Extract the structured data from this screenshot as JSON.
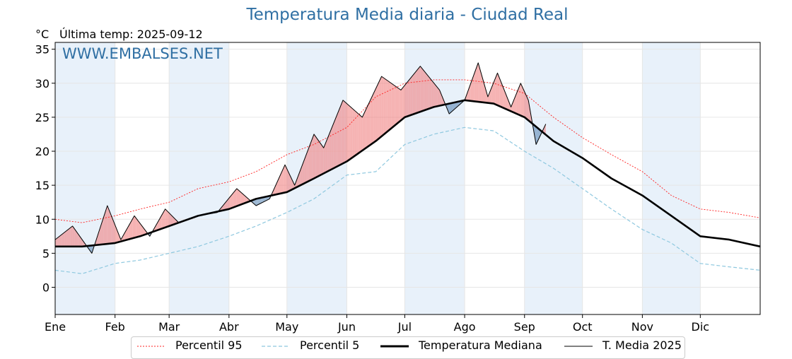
{
  "title": "Temperatura Media diaria - Ciudad Real",
  "unit_label": "°C",
  "last_temp_label": "Última temp: 2025-09-12",
  "watermark": "WWW.EMBALSES.NET",
  "colors": {
    "p95": "#ff2020",
    "p5": "#8ec8df",
    "median": "#000000",
    "current": "#000000",
    "above_fill": "#f08080",
    "below_fill": "#5b88b5",
    "month_shade": "#e8f1fa",
    "title": "#2f6fa3"
  },
  "legend": [
    {
      "key": "p95",
      "label": "Percentil 95"
    },
    {
      "key": "p5",
      "label": "Percentil 5"
    },
    {
      "key": "median",
      "label": "Temperatura Mediana"
    },
    {
      "key": "current",
      "label": "T. Media 2025"
    }
  ],
  "chart_data": {
    "type": "line",
    "title": "Temperatura Media diaria - Ciudad Real",
    "ylabel": "°C",
    "ylim": [
      -4,
      36
    ],
    "yticks": [
      0,
      5,
      10,
      15,
      20,
      25,
      30,
      35
    ],
    "xlim_day": [
      1,
      366
    ],
    "month_ticks": [
      {
        "label": "Ene",
        "day": 1
      },
      {
        "label": "Feb",
        "day": 32
      },
      {
        "label": "Mar",
        "day": 60
      },
      {
        "label": "Abr",
        "day": 91
      },
      {
        "label": "May",
        "day": 121
      },
      {
        "label": "Jun",
        "day": 152
      },
      {
        "label": "Jul",
        "day": 182
      },
      {
        "label": "Ago",
        "day": 213
      },
      {
        "label": "Sep",
        "day": 244
      },
      {
        "label": "Oct",
        "day": 274
      },
      {
        "label": "Nov",
        "day": 305
      },
      {
        "label": "Dic",
        "day": 335
      }
    ],
    "grid": true,
    "legend_position": "bottom",
    "series": [
      {
        "name": "Percentil 95",
        "style": "dotted-red",
        "days": [
          1,
          15,
          32,
          45,
          60,
          75,
          91,
          105,
          121,
          135,
          152,
          167,
          182,
          197,
          213,
          228,
          244,
          259,
          274,
          289,
          305,
          320,
          335,
          350,
          366
        ],
        "values": [
          10.0,
          9.5,
          10.5,
          11.5,
          12.5,
          14.5,
          15.5,
          17.0,
          19.5,
          21.0,
          23.5,
          28.0,
          30.0,
          30.5,
          30.5,
          30.0,
          28.5,
          25.0,
          22.0,
          19.5,
          17.0,
          13.5,
          11.5,
          11.0,
          10.2
        ]
      },
      {
        "name": "Percentil 5",
        "style": "dashed-lightblue",
        "days": [
          1,
          15,
          32,
          45,
          60,
          75,
          91,
          105,
          121,
          135,
          152,
          167,
          182,
          197,
          213,
          228,
          244,
          259,
          274,
          289,
          305,
          320,
          335,
          350,
          366
        ],
        "values": [
          2.5,
          2.0,
          3.5,
          4.0,
          5.0,
          6.0,
          7.5,
          9.0,
          11.0,
          13.0,
          16.5,
          17.0,
          21.0,
          22.5,
          23.5,
          23.0,
          20.0,
          17.5,
          14.5,
          11.5,
          8.5,
          6.5,
          3.5,
          3.0,
          2.5
        ]
      },
      {
        "name": "Temperatura Mediana",
        "style": "thick-black",
        "days": [
          1,
          15,
          32,
          45,
          60,
          75,
          91,
          105,
          121,
          135,
          152,
          167,
          182,
          197,
          213,
          228,
          244,
          259,
          274,
          289,
          305,
          320,
          335,
          350,
          366
        ],
        "values": [
          6.0,
          6.0,
          6.5,
          7.5,
          9.0,
          10.5,
          11.5,
          13.0,
          14.0,
          16.0,
          18.5,
          21.5,
          25.0,
          26.5,
          27.5,
          27.0,
          25.0,
          21.5,
          19.0,
          16.0,
          13.5,
          10.5,
          7.5,
          7.0,
          6.0
        ]
      },
      {
        "name": "T. Media 2025",
        "style": "thin-black",
        "days": [
          1,
          10,
          20,
          28,
          35,
          42,
          50,
          58,
          65,
          75,
          85,
          95,
          105,
          112,
          120,
          125,
          135,
          140,
          150,
          160,
          170,
          180,
          190,
          200,
          205,
          213,
          220,
          225,
          230,
          237,
          242,
          246,
          250,
          255
        ],
        "values": [
          7.0,
          9.0,
          5.0,
          12.0,
          7.0,
          10.5,
          7.5,
          11.5,
          9.5,
          10.5,
          11.0,
          14.5,
          12.0,
          13.0,
          18.0,
          15.0,
          22.5,
          20.5,
          27.5,
          25.0,
          31.0,
          29.0,
          32.5,
          29.0,
          25.5,
          27.5,
          33.0,
          28.0,
          31.5,
          26.5,
          30.0,
          27.5,
          21.0,
          24.0
        ]
      }
    ]
  }
}
